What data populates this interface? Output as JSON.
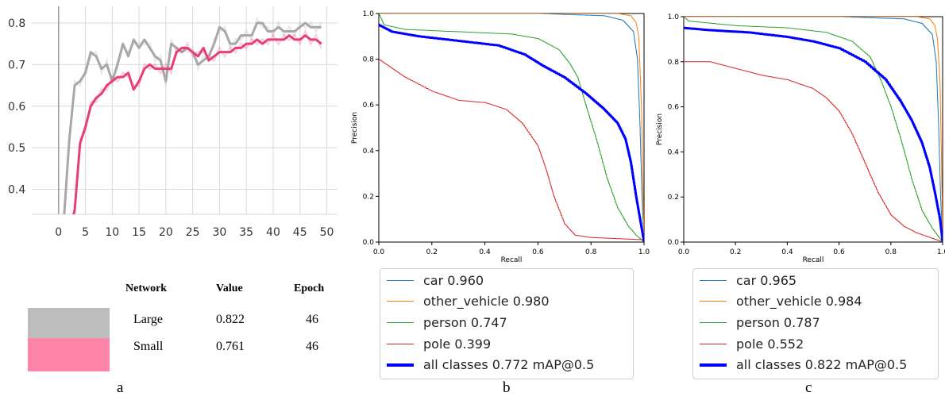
{
  "panel_labels": {
    "a": "a",
    "b": "b",
    "c": "c"
  },
  "table": {
    "headers": {
      "network": "Network",
      "value": "Value",
      "epoch": "Epoch"
    },
    "rows": [
      {
        "network": "Large",
        "value": "0.822",
        "epoch": "46",
        "color": "#bdbdbd"
      },
      {
        "network": "Small",
        "value": "0.761",
        "epoch": "46",
        "color": "#ff85a8"
      }
    ]
  },
  "chart_data": [
    {
      "type": "line",
      "xlim": [
        -5,
        52
      ],
      "ylim": [
        0.34,
        0.84
      ],
      "x_ticks": [
        "0",
        "5",
        "10",
        "15",
        "20",
        "25",
        "30",
        "35",
        "40",
        "45",
        "50"
      ],
      "y_ticks": [
        "0.4",
        "0.5",
        "0.6",
        "0.7",
        "0.8"
      ],
      "grid": true,
      "x": [
        1,
        2,
        3,
        4,
        5,
        6,
        7,
        8,
        9,
        10,
        11,
        12,
        13,
        14,
        15,
        16,
        17,
        18,
        19,
        20,
        21,
        22,
        23,
        24,
        25,
        26,
        27,
        28,
        29,
        30,
        31,
        32,
        33,
        34,
        35,
        36,
        37,
        38,
        39,
        40,
        41,
        42,
        43,
        44,
        45,
        46,
        47,
        48,
        49
      ],
      "series": [
        {
          "name": "Large",
          "color": "#a8a8a8",
          "values": [
            0.33,
            0.52,
            0.65,
            0.66,
            0.68,
            0.73,
            0.72,
            0.69,
            0.7,
            0.66,
            0.7,
            0.75,
            0.72,
            0.76,
            0.74,
            0.76,
            0.74,
            0.72,
            0.71,
            0.66,
            0.75,
            0.74,
            0.73,
            0.74,
            0.73,
            0.7,
            0.71,
            0.72,
            0.75,
            0.79,
            0.78,
            0.75,
            0.75,
            0.77,
            0.77,
            0.77,
            0.8,
            0.8,
            0.78,
            0.78,
            0.79,
            0.78,
            0.78,
            0.78,
            0.79,
            0.8,
            0.79,
            0.79,
            0.79
          ]
        },
        {
          "name": "Small",
          "color": "#e83e77",
          "values": [
            null,
            0.3,
            0.35,
            0.51,
            0.55,
            0.6,
            0.62,
            0.63,
            0.65,
            0.66,
            0.67,
            0.67,
            0.68,
            0.64,
            0.66,
            0.69,
            0.7,
            0.69,
            0.69,
            0.69,
            0.69,
            0.73,
            0.74,
            0.74,
            0.73,
            0.72,
            0.74,
            0.71,
            0.72,
            0.73,
            0.73,
            0.73,
            0.74,
            0.74,
            0.75,
            0.75,
            0.76,
            0.75,
            0.76,
            0.76,
            0.76,
            0.76,
            0.77,
            0.76,
            0.76,
            0.77,
            0.76,
            0.76,
            0.75
          ]
        }
      ]
    },
    {
      "type": "line",
      "xlabel": "Recall",
      "ylabel": "Precision",
      "xlim": [
        0,
        1
      ],
      "ylim": [
        0,
        1
      ],
      "x_ticks": [
        "0.0",
        "0.2",
        "0.4",
        "0.6",
        "0.8",
        "1.0"
      ],
      "y_ticks": [
        "0.0",
        "0.2",
        "0.4",
        "0.6",
        "0.8",
        "1.0"
      ],
      "series": [
        {
          "name": "car 0.960",
          "color": "#1f77b4",
          "width": 1,
          "points": [
            [
              0,
              1.0
            ],
            [
              0.6,
              1.0
            ],
            [
              0.85,
              0.99
            ],
            [
              0.92,
              0.97
            ],
            [
              0.96,
              0.92
            ],
            [
              0.975,
              0.8
            ],
            [
              0.985,
              0.5
            ],
            [
              0.992,
              0.2
            ],
            [
              1.0,
              0.0
            ]
          ]
        },
        {
          "name": "other_vehicle 0.980",
          "color": "#ff7f0e",
          "width": 1,
          "points": [
            [
              0,
              1.0
            ],
            [
              0.9,
              1.0
            ],
            [
              0.95,
              0.99
            ],
            [
              0.97,
              0.96
            ],
            [
              0.98,
              0.9
            ],
            [
              0.985,
              0.75
            ],
            [
              0.99,
              0.6
            ],
            [
              0.995,
              0.3
            ],
            [
              1.0,
              0.0
            ]
          ]
        },
        {
          "name": "person 0.747",
          "color": "#2ca02c",
          "width": 1,
          "points": [
            [
              0,
              1.0
            ],
            [
              0.02,
              0.95
            ],
            [
              0.1,
              0.93
            ],
            [
              0.3,
              0.92
            ],
            [
              0.5,
              0.91
            ],
            [
              0.6,
              0.89
            ],
            [
              0.68,
              0.84
            ],
            [
              0.72,
              0.78
            ],
            [
              0.75,
              0.72
            ],
            [
              0.78,
              0.6
            ],
            [
              0.82,
              0.45
            ],
            [
              0.86,
              0.28
            ],
            [
              0.9,
              0.15
            ],
            [
              0.94,
              0.07
            ],
            [
              0.97,
              0.03
            ],
            [
              1.0,
              0.0
            ]
          ]
        },
        {
          "name": "pole 0.399",
          "color": "#d62728",
          "width": 1,
          "points": [
            [
              0,
              0.8
            ],
            [
              0.05,
              0.76
            ],
            [
              0.1,
              0.72
            ],
            [
              0.2,
              0.66
            ],
            [
              0.3,
              0.62
            ],
            [
              0.4,
              0.61
            ],
            [
              0.48,
              0.58
            ],
            [
              0.54,
              0.52
            ],
            [
              0.6,
              0.42
            ],
            [
              0.63,
              0.32
            ],
            [
              0.66,
              0.2
            ],
            [
              0.7,
              0.08
            ],
            [
              0.74,
              0.03
            ],
            [
              0.8,
              0.02
            ],
            [
              0.9,
              0.015
            ],
            [
              1.0,
              0.01
            ]
          ]
        },
        {
          "name": "all classes 0.772 mAP@0.5",
          "color": "#0000ff",
          "width": 3,
          "points": [
            [
              0,
              0.95
            ],
            [
              0.05,
              0.92
            ],
            [
              0.15,
              0.9
            ],
            [
              0.3,
              0.88
            ],
            [
              0.45,
              0.86
            ],
            [
              0.55,
              0.82
            ],
            [
              0.62,
              0.77
            ],
            [
              0.7,
              0.72
            ],
            [
              0.78,
              0.65
            ],
            [
              0.85,
              0.58
            ],
            [
              0.9,
              0.52
            ],
            [
              0.93,
              0.45
            ],
            [
              0.95,
              0.35
            ],
            [
              0.97,
              0.2
            ],
            [
              0.985,
              0.1
            ],
            [
              1.0,
              0.0
            ]
          ]
        }
      ]
    },
    {
      "type": "line",
      "xlabel": "Recall",
      "ylabel": "Precision",
      "xlim": [
        0,
        1
      ],
      "ylim": [
        0,
        1
      ],
      "x_ticks": [
        "0.0",
        "0.2",
        "0.4",
        "0.6",
        "0.8",
        "1.0"
      ],
      "y_ticks": [
        "0.0",
        "0.2",
        "0.4",
        "0.6",
        "0.8",
        "1.0"
      ],
      "series": [
        {
          "name": "car 0.965",
          "color": "#1f77b4",
          "width": 1,
          "points": [
            [
              0,
              1.0
            ],
            [
              0.6,
              1.0
            ],
            [
              0.85,
              0.99
            ],
            [
              0.92,
              0.97
            ],
            [
              0.96,
              0.92
            ],
            [
              0.975,
              0.8
            ],
            [
              0.985,
              0.5
            ],
            [
              0.992,
              0.2
            ],
            [
              1.0,
              0.0
            ]
          ]
        },
        {
          "name": "other_vehicle 0.984",
          "color": "#ff7f0e",
          "width": 1,
          "points": [
            [
              0,
              1.0
            ],
            [
              0.9,
              1.0
            ],
            [
              0.95,
              0.99
            ],
            [
              0.97,
              0.96
            ],
            [
              0.98,
              0.9
            ],
            [
              0.99,
              0.7
            ],
            [
              0.995,
              0.4
            ],
            [
              1.0,
              0.0
            ]
          ]
        },
        {
          "name": "person 0.787",
          "color": "#2ca02c",
          "width": 1,
          "points": [
            [
              0,
              1.0
            ],
            [
              0.02,
              0.98
            ],
            [
              0.2,
              0.96
            ],
            [
              0.4,
              0.95
            ],
            [
              0.55,
              0.93
            ],
            [
              0.65,
              0.89
            ],
            [
              0.72,
              0.82
            ],
            [
              0.76,
              0.72
            ],
            [
              0.8,
              0.6
            ],
            [
              0.84,
              0.45
            ],
            [
              0.88,
              0.28
            ],
            [
              0.92,
              0.14
            ],
            [
              0.96,
              0.06
            ],
            [
              1.0,
              0.0
            ]
          ]
        },
        {
          "name": "pole 0.552",
          "color": "#d62728",
          "width": 1,
          "points": [
            [
              0,
              0.8
            ],
            [
              0.02,
              0.8
            ],
            [
              0.1,
              0.8
            ],
            [
              0.2,
              0.77
            ],
            [
              0.3,
              0.74
            ],
            [
              0.4,
              0.72
            ],
            [
              0.5,
              0.68
            ],
            [
              0.55,
              0.64
            ],
            [
              0.6,
              0.58
            ],
            [
              0.65,
              0.48
            ],
            [
              0.7,
              0.35
            ],
            [
              0.75,
              0.22
            ],
            [
              0.8,
              0.12
            ],
            [
              0.85,
              0.07
            ],
            [
              0.9,
              0.04
            ],
            [
              1.0,
              0.0
            ]
          ]
        },
        {
          "name": "all classes 0.822 mAP@0.5",
          "color": "#0000ff",
          "width": 3,
          "points": [
            [
              0,
              0.95
            ],
            [
              0.1,
              0.94
            ],
            [
              0.25,
              0.93
            ],
            [
              0.4,
              0.91
            ],
            [
              0.5,
              0.89
            ],
            [
              0.6,
              0.86
            ],
            [
              0.7,
              0.8
            ],
            [
              0.78,
              0.72
            ],
            [
              0.84,
              0.62
            ],
            [
              0.88,
              0.54
            ],
            [
              0.92,
              0.44
            ],
            [
              0.95,
              0.33
            ],
            [
              0.97,
              0.22
            ],
            [
              0.99,
              0.1
            ],
            [
              1.0,
              0.0
            ]
          ]
        }
      ]
    }
  ]
}
